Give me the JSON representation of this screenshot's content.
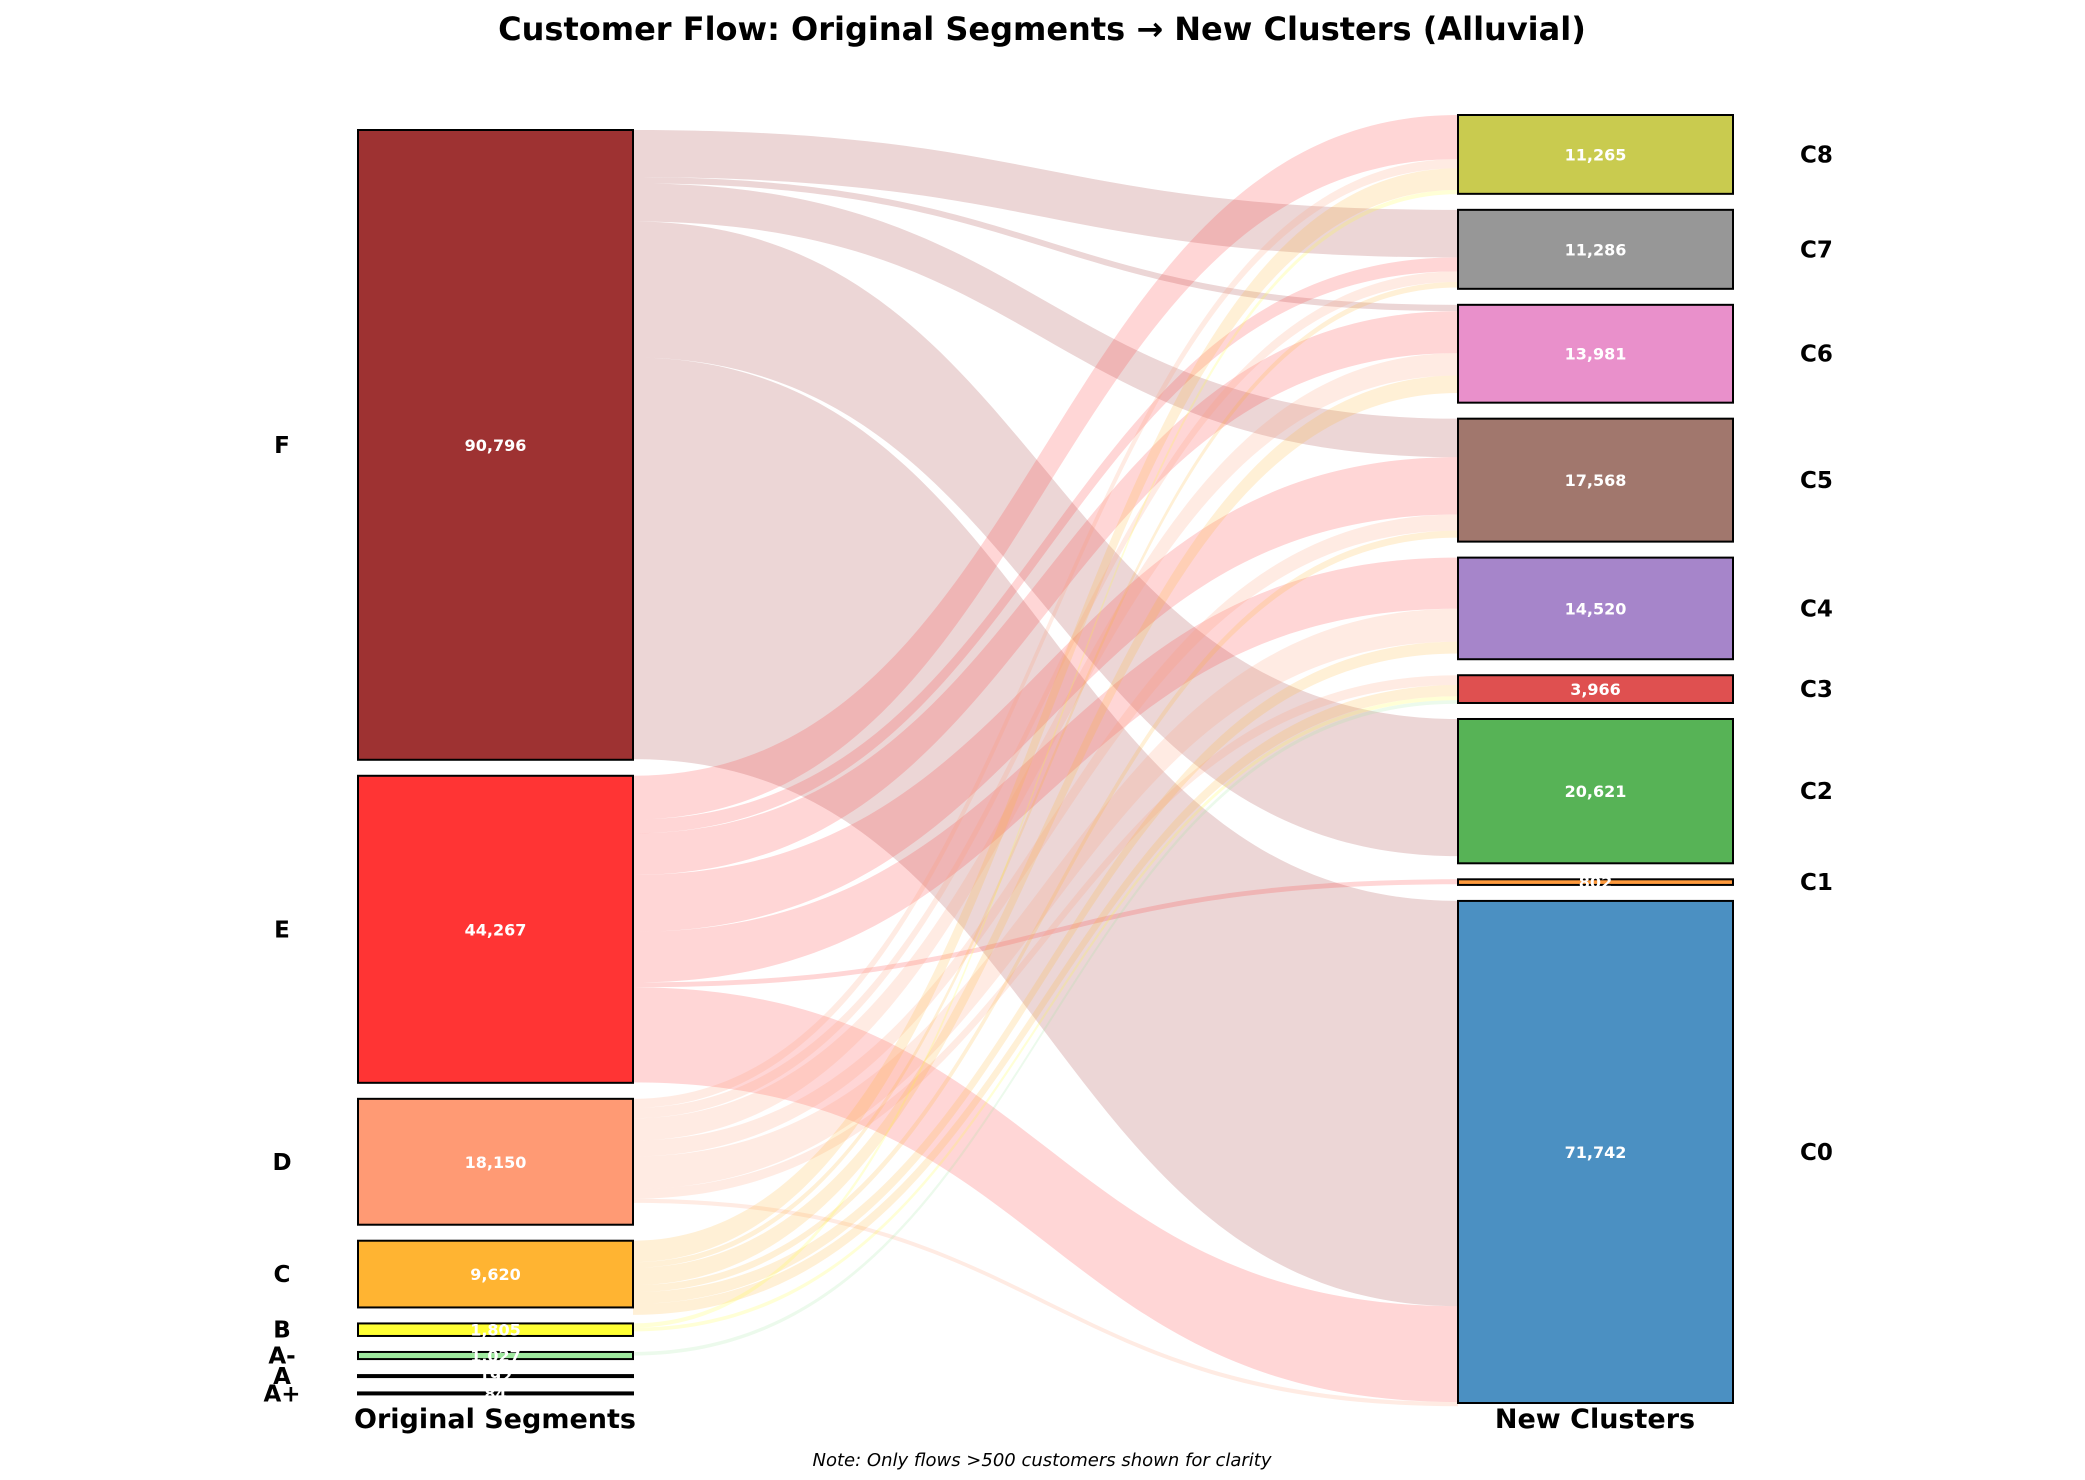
{
  "chart_data": {
    "type": "alluvial",
    "title": "Customer Flow: Original Segments → New Clusters (Alluvial)",
    "left_axis_label": "Original Segments",
    "right_axis_label": "New Clusters",
    "note": "Note: Only flows >500 customers shown for clarity",
    "left_nodes": [
      {
        "name": "F",
        "value": 90796,
        "value_label": "90,796",
        "color": "#9e3232"
      },
      {
        "name": "E",
        "value": 44267,
        "value_label": "44,267",
        "color": "#ff3434"
      },
      {
        "name": "D",
        "value": 18150,
        "value_label": "18,150",
        "color": "#ff9a74"
      },
      {
        "name": "C",
        "value": 9620,
        "value_label": "9,620",
        "color": "#ffb432"
      },
      {
        "name": "B",
        "value": 1805,
        "value_label": "1,805",
        "color": "#ffff34"
      },
      {
        "name": "A-",
        "value": 1027,
        "value_label": "1,027",
        "color": "#9ee89e"
      },
      {
        "name": "A",
        "value": 192,
        "value_label": "192",
        "color": "#3a7a3a"
      },
      {
        "name": "A+",
        "value": 84,
        "value_label": "84",
        "color": "#1a4a1a"
      }
    ],
    "right_nodes": [
      {
        "name": "C8",
        "value": 11265,
        "value_label": "11,265",
        "color": "#c9cb4f"
      },
      {
        "name": "C7",
        "value": 11286,
        "value_label": "11,286",
        "color": "#979797"
      },
      {
        "name": "C6",
        "value": 13981,
        "value_label": "13,981",
        "color": "#e990cb"
      },
      {
        "name": "C5",
        "value": 17568,
        "value_label": "17,568",
        "color": "#a1776d"
      },
      {
        "name": "C4",
        "value": 14520,
        "value_label": "14,520",
        "color": "#a685ca"
      },
      {
        "name": "C3",
        "value": 3966,
        "value_label": "3,966",
        "color": "#df5050"
      },
      {
        "name": "C2",
        "value": 20621,
        "value_label": "20,621",
        "color": "#57b356"
      },
      {
        "name": "C1",
        "value": 802,
        "value_label": "802",
        "color": "#ff9a3c"
      },
      {
        "name": "C0",
        "value": 71742,
        "value_label": "71,742",
        "color": "#4b90c2"
      }
    ],
    "flows": [
      {
        "source": "F",
        "target": "C7",
        "value": 6800
      },
      {
        "source": "F",
        "target": "C6",
        "value": 900
      },
      {
        "source": "F",
        "target": "C5",
        "value": 5500
      },
      {
        "source": "F",
        "target": "C2",
        "value": 19600
      },
      {
        "source": "F",
        "target": "C0",
        "value": 57900
      },
      {
        "source": "E",
        "target": "C8",
        "value": 6300
      },
      {
        "source": "E",
        "target": "C7",
        "value": 2000
      },
      {
        "source": "E",
        "target": "C6",
        "value": 6000
      },
      {
        "source": "E",
        "target": "C5",
        "value": 8200
      },
      {
        "source": "E",
        "target": "C4",
        "value": 7300
      },
      {
        "source": "E",
        "target": "C1",
        "value": 700
      },
      {
        "source": "E",
        "target": "C0",
        "value": 13700
      },
      {
        "source": "D",
        "target": "C8",
        "value": 1300
      },
      {
        "source": "D",
        "target": "C7",
        "value": 1500
      },
      {
        "source": "D",
        "target": "C6",
        "value": 3200
      },
      {
        "source": "D",
        "target": "C5",
        "value": 2300
      },
      {
        "source": "D",
        "target": "C4",
        "value": 4700
      },
      {
        "source": "D",
        "target": "C3",
        "value": 1400
      },
      {
        "source": "D",
        "target": "C0",
        "value": 600
      },
      {
        "source": "C",
        "target": "C8",
        "value": 3100
      },
      {
        "source": "C",
        "target": "C7",
        "value": 800
      },
      {
        "source": "C",
        "target": "C6",
        "value": 2500
      },
      {
        "source": "C",
        "target": "C5",
        "value": 1000
      },
      {
        "source": "C",
        "target": "C4",
        "value": 1700
      },
      {
        "source": "C",
        "target": "C3",
        "value": 1600
      },
      {
        "source": "B",
        "target": "C8",
        "value": 600
      },
      {
        "source": "B",
        "target": "C3",
        "value": 550
      },
      {
        "source": "A-",
        "target": "C3",
        "value": 520
      }
    ]
  }
}
